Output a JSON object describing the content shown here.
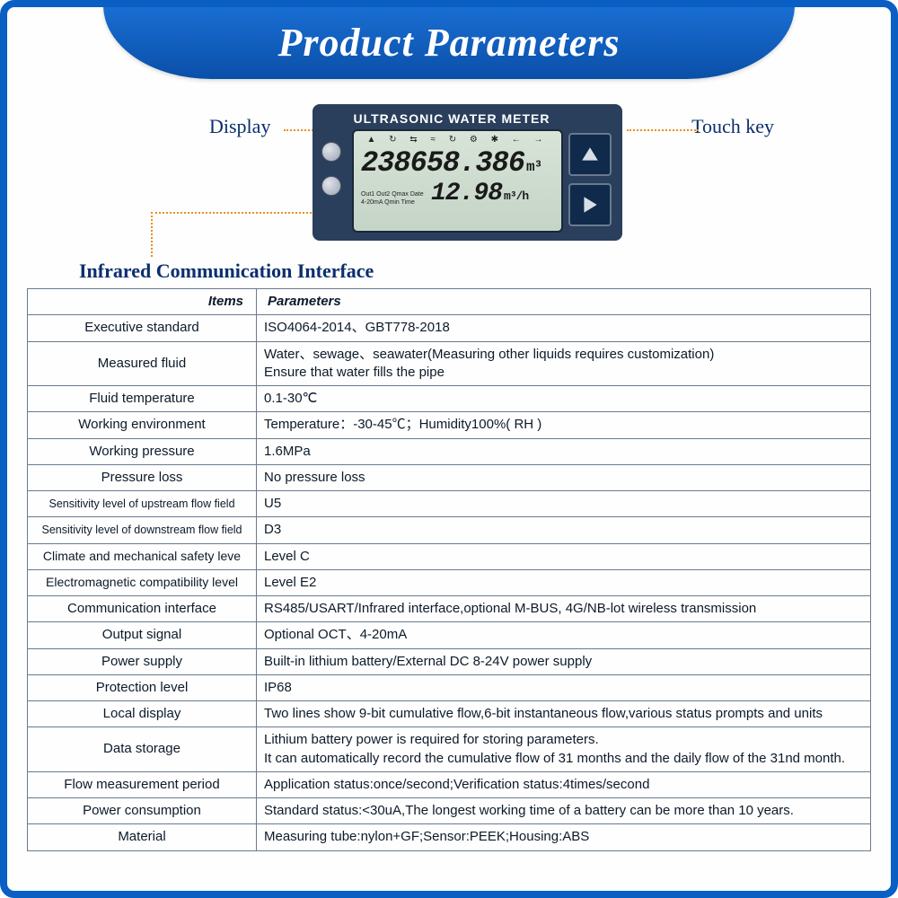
{
  "title": "Product Parameters",
  "labels": {
    "display": "Display",
    "touch_key": "Touch key",
    "infrared": "Infrared Communication Interface"
  },
  "device": {
    "title": "ULTRASONIC WATER METER",
    "lcd_icons": "▲ ↻ ⇆ ≈ ↻ ⚙ ✱ ← →",
    "lcd_main_value": "238658.386",
    "lcd_main_unit": "m³",
    "lcd_small_line1": "Out1 Out2 Qmax Date",
    "lcd_small_line2": "4-20mA   Qmin Time",
    "lcd_sec_value": "12.98",
    "lcd_sec_unit": "m³/h"
  },
  "table": {
    "head_item": "Items",
    "head_param": "Parameters",
    "rows": [
      {
        "item": "Executive standard",
        "param": "ISO4064-2014、GBT778-2018"
      },
      {
        "item": "Measured fluid",
        "param": "Water、sewage、seawater(Measuring other liquids requires customization)\nEnsure that water fills the pipe"
      },
      {
        "item": "Fluid temperature",
        "param": "0.1-30℃"
      },
      {
        "item": "Working environment",
        "param": "Temperature：-30-45℃；Humidity100%( RH )"
      },
      {
        "item": "Working pressure",
        "param": "1.6MPa"
      },
      {
        "item": "Pressure loss",
        "param": "No pressure loss"
      },
      {
        "item": "Sensitivity level of upstream flow field",
        "param": "U5",
        "small": true
      },
      {
        "item": "Sensitivity level of downstream flow field",
        "param": "D3",
        "small": true
      },
      {
        "item": "Climate and mechanical safety leve",
        "param": "Level C",
        "smallish": true
      },
      {
        "item": "Electromagnetic compatibility level",
        "param": "Level E2",
        "smallish": true
      },
      {
        "item": "Communication interface",
        "param": "RS485/USART/Infrared interface,optional M-BUS, 4G/NB-lot wireless transmission"
      },
      {
        "item": "Output signal",
        "param": "Optional OCT、4-20mA"
      },
      {
        "item": "Power supply",
        "param": "Built-in lithium battery/External DC 8-24V power supply"
      },
      {
        "item": "Protection level",
        "param": "IP68"
      },
      {
        "item": "Local display",
        "param": "Two lines show 9-bit cumulative flow,6-bit instantaneous flow,various status prompts and units"
      },
      {
        "item": "Data storage",
        "param": "Lithium battery power is required for storing parameters.\nIt can automatically record the cumulative flow of 31 months and the daily flow of the 31nd month."
      },
      {
        "item": "Flow measurement period",
        "param": "Application status:once/second;Verification status:4times/second"
      },
      {
        "item": "Power consumption",
        "param": "Standard status:<30uA,The longest working time of a battery can be more than 10 years."
      },
      {
        "item": "Material",
        "param": "Measuring tube:nylon+GF;Sensor:PEEK;Housing:ABS"
      }
    ]
  },
  "colors": {
    "frame_blue": "#0a5fc4",
    "banner_grad_top": "#1a6fd4",
    "banner_grad_bot": "#0a4fa8",
    "label_navy": "#0b2e6e",
    "device_bg": "#2a3f5c",
    "lcd_bg_top": "#d8e4d8",
    "lcd_bg_bot": "#c4d4c6",
    "leader_orange": "#e89020",
    "table_border": "#6a7a8e"
  }
}
